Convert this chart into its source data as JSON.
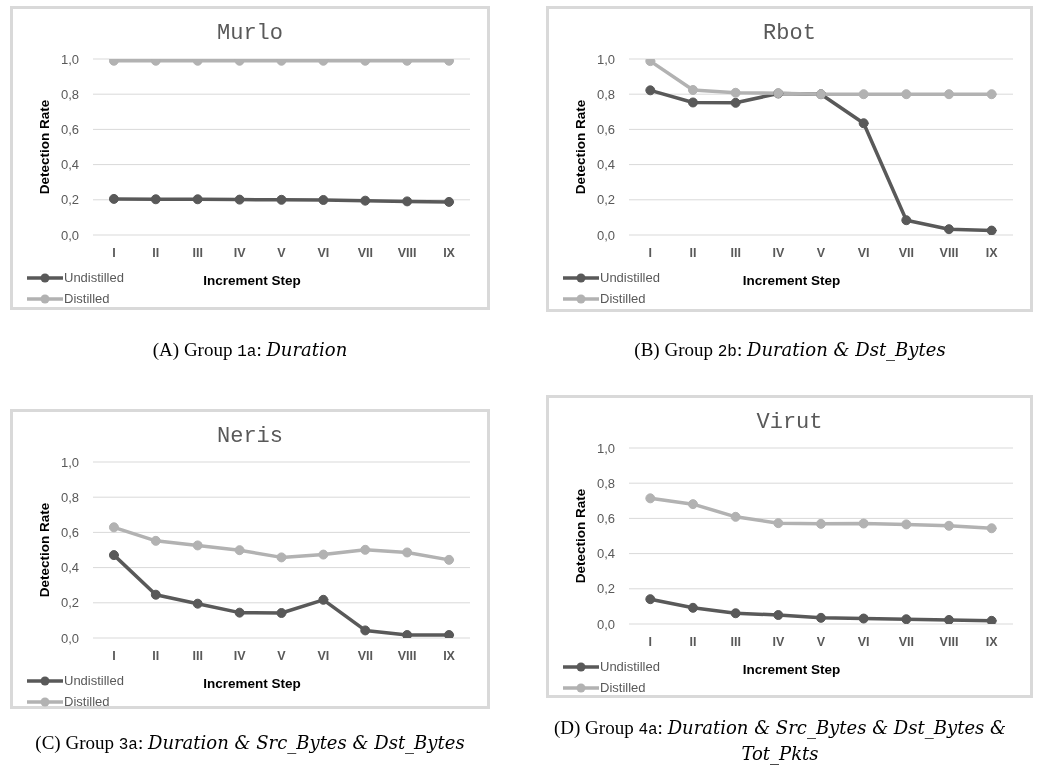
{
  "chart_data": [
    {
      "type": "line",
      "title": "Murlo",
      "categories": [
        "I",
        "II",
        "III",
        "IV",
        "V",
        "VI",
        "VII",
        "VIII",
        "IX"
      ],
      "series": [
        {
          "name": "Undistilled",
          "color": "#595959",
          "values": [
            0.205,
            0.203,
            0.203,
            0.201,
            0.2,
            0.199,
            0.195,
            0.191,
            0.188
          ]
        },
        {
          "name": "Distilled",
          "color": "#b2b2b2",
          "values": [
            0.99,
            0.99,
            0.99,
            0.99,
            0.99,
            0.99,
            0.99,
            0.99,
            0.99
          ]
        }
      ],
      "xlabel": "Increment Step",
      "ylabel": "Detection Rate",
      "ylim": [
        0,
        1
      ],
      "yticks": [
        {
          "value": 0,
          "label": "0,0"
        },
        {
          "value": 0.2,
          "label": "0,2"
        },
        {
          "value": 0.4,
          "label": "0,4"
        },
        {
          "value": 0.6,
          "label": "0,6"
        },
        {
          "value": 0.8,
          "label": "0,8"
        },
        {
          "value": 1,
          "label": "1,0"
        }
      ],
      "grid": "y",
      "legend": "bottom left",
      "marker": "circle",
      "line_style": "solid",
      "annotations": [
        "(A) Group 1a: Duration"
      ]
    },
    {
      "type": "line",
      "title": "Rbot",
      "categories": [
        "I",
        "II",
        "III",
        "IV",
        "V",
        "VI",
        "VII",
        "VIII",
        "IX"
      ],
      "series": [
        {
          "name": "Undistilled",
          "color": "#595959",
          "values": [
            0.822,
            0.753,
            0.751,
            0.804,
            0.8,
            0.635,
            0.084,
            0.033,
            0.025
          ]
        },
        {
          "name": "Distilled",
          "color": "#b2b2b2",
          "values": [
            0.988,
            0.824,
            0.808,
            0.806,
            0.8,
            0.8,
            0.8,
            0.8,
            0.8
          ]
        }
      ],
      "xlabel": "Increment Step",
      "ylabel": "Detection Rate",
      "ylim": [
        0,
        1
      ],
      "yticks": [
        {
          "value": 0,
          "label": "0,0"
        },
        {
          "value": 0.2,
          "label": "0,2"
        },
        {
          "value": 0.4,
          "label": "0,4"
        },
        {
          "value": 0.6,
          "label": "0,6"
        },
        {
          "value": 0.8,
          "label": "0,8"
        },
        {
          "value": 1,
          "label": "1,0"
        }
      ],
      "grid": "y",
      "legend": "bottom left",
      "marker": "circle",
      "line_style": "solid",
      "annotations": [
        "(B) Group 2b: Duration & Dst_Bytes"
      ]
    },
    {
      "type": "line",
      "title": "Neris",
      "categories": [
        "I",
        "II",
        "III",
        "IV",
        "V",
        "VI",
        "VII",
        "VIII",
        "IX"
      ],
      "series": [
        {
          "name": "Undistilled",
          "color": "#595959",
          "values": [
            0.471,
            0.246,
            0.195,
            0.144,
            0.142,
            0.217,
            0.043,
            0.017,
            0.017
          ]
        },
        {
          "name": "Distilled",
          "color": "#b2b2b2",
          "values": [
            0.629,
            0.552,
            0.526,
            0.499,
            0.458,
            0.474,
            0.501,
            0.486,
            0.444
          ]
        }
      ],
      "xlabel": "Increment Step",
      "ylabel": "Detection Rate",
      "ylim": [
        0,
        1
      ],
      "yticks": [
        {
          "value": 0,
          "label": "0,0"
        },
        {
          "value": 0.2,
          "label": "0,2"
        },
        {
          "value": 0.4,
          "label": "0,4"
        },
        {
          "value": 0.6,
          "label": "0,6"
        },
        {
          "value": 0.8,
          "label": "0,8"
        },
        {
          "value": 1,
          "label": "1,0"
        }
      ],
      "grid": "y",
      "legend": "bottom left",
      "marker": "circle",
      "line_style": "solid",
      "annotations": [
        "(C) Group 3a: Duration & Src_Bytes & Dst_Bytes"
      ]
    },
    {
      "type": "line",
      "title": "Virut",
      "categories": [
        "I",
        "II",
        "III",
        "IV",
        "V",
        "VI",
        "VII",
        "VIII",
        "IX"
      ],
      "series": [
        {
          "name": "Undistilled",
          "color": "#595959",
          "values": [
            0.141,
            0.092,
            0.061,
            0.051,
            0.035,
            0.031,
            0.027,
            0.023,
            0.018
          ]
        },
        {
          "name": "Distilled",
          "color": "#b2b2b2",
          "values": [
            0.714,
            0.681,
            0.609,
            0.573,
            0.569,
            0.571,
            0.566,
            0.558,
            0.544
          ]
        }
      ],
      "xlabel": "Increment Step",
      "ylabel": "Detection Rate",
      "ylim": [
        0,
        1
      ],
      "yticks": [
        {
          "value": 0,
          "label": "0,0"
        },
        {
          "value": 0.2,
          "label": "0,2"
        },
        {
          "value": 0.4,
          "label": "0,4"
        },
        {
          "value": 0.6,
          "label": "0,6"
        },
        {
          "value": 0.8,
          "label": "0,8"
        },
        {
          "value": 1,
          "label": "1,0"
        }
      ],
      "grid": "y",
      "legend": "bottom left",
      "marker": "circle",
      "line_style": "solid",
      "annotations": [
        "(D) Group 4a: Duration & Src_Bytes & Dst_Bytes & Tot_Pkts"
      ]
    }
  ]
}
